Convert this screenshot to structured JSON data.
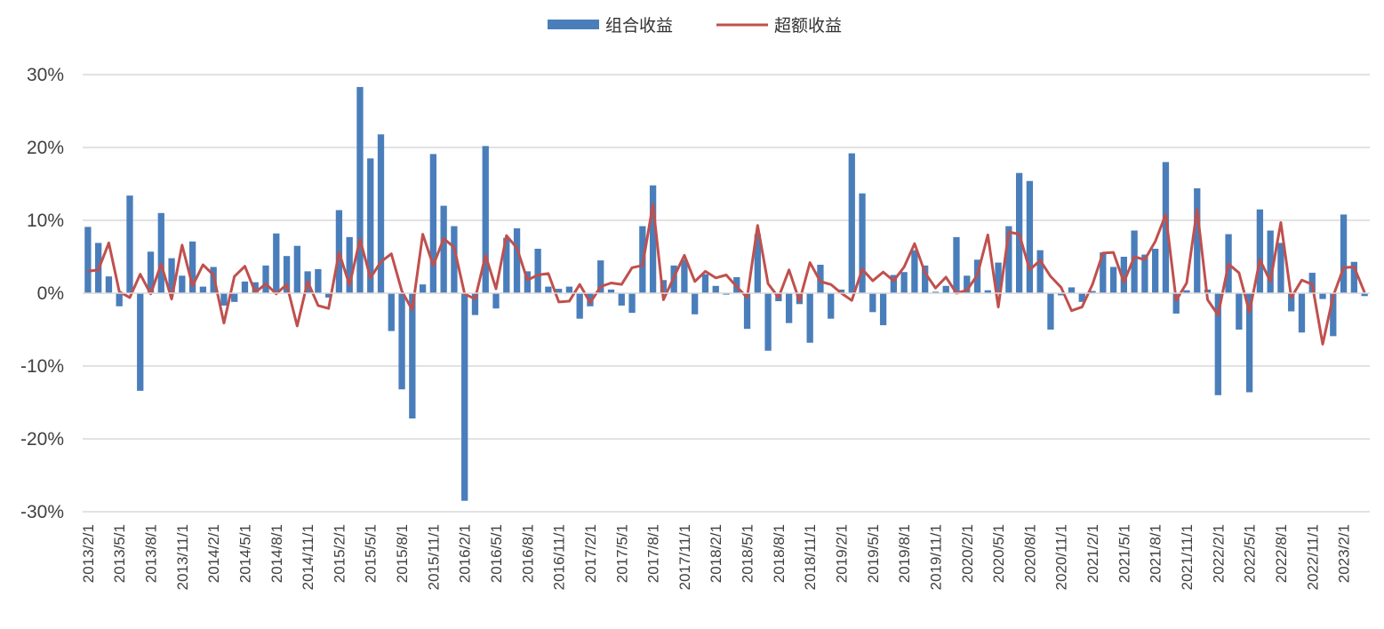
{
  "chart_data": {
    "type": "bar",
    "series": [
      {
        "name": "组合收益",
        "type": "bar",
        "color": "#4A7EBB",
        "values": [
          9.1,
          6.9,
          2.3,
          -1.8,
          13.4,
          -13.4,
          5.7,
          11.0,
          4.8,
          2.4,
          7.1,
          0.9,
          3.6,
          -1.7,
          -1.2,
          1.6,
          1.5,
          3.8,
          8.2,
          5.1,
          6.5,
          3.0,
          3.3,
          -0.6,
          11.4,
          7.7,
          28.3,
          18.5,
          21.8,
          -5.2,
          -13.2,
          -17.2,
          1.2,
          19.1,
          12.0,
          9.2,
          -28.5,
          -3.0,
          20.2,
          -2.1,
          7.6,
          8.9,
          3.0,
          6.1,
          0.9,
          0.6,
          0.9,
          -3.5,
          -1.8,
          4.5,
          0.5,
          -1.7,
          -2.7,
          9.2,
          14.8,
          1.8,
          3.8,
          4.6,
          -2.9,
          2.6,
          1.0,
          -0.2,
          2.2,
          -4.9,
          8.1,
          -7.9,
          -1.1,
          -4.1,
          -1.5,
          -6.8,
          3.9,
          -3.5,
          0.5,
          19.2,
          13.7,
          -2.6,
          -4.4,
          2.5,
          2.9,
          5.9,
          3.8,
          0.2,
          1.0,
          7.7,
          2.4,
          4.6,
          0.4,
          4.2,
          9.2,
          16.5,
          15.4,
          5.9,
          -5.0,
          -0.3,
          0.8,
          -1.2,
          0.3,
          5.6,
          3.6,
          5.0,
          8.6,
          5.3,
          6.1,
          18.0,
          -2.8,
          0.4,
          14.4,
          0.5,
          -14.0,
          8.1,
          -5.0,
          -13.6,
          11.5,
          8.6,
          6.9,
          -2.5,
          -5.4,
          2.8,
          -0.8,
          -5.9,
          10.8,
          4.3,
          -0.4
        ]
      },
      {
        "name": "超额收益",
        "type": "line",
        "color": "#C0504D",
        "values": [
          3.0,
          3.2,
          6.9,
          0.2,
          -0.6,
          2.6,
          -0.1,
          4.0,
          -0.8,
          6.6,
          1.0,
          3.9,
          2.5,
          -4.1,
          2.3,
          3.7,
          0.1,
          1.3,
          -0.1,
          1.2,
          -4.5,
          1.6,
          -1.7,
          -2.1,
          5.6,
          1.1,
          7.4,
          2.1,
          4.3,
          5.4,
          0.3,
          -2.3,
          8.1,
          3.8,
          7.5,
          6.3,
          -0.1,
          -0.8,
          5.2,
          0.6,
          7.9,
          6.2,
          1.8,
          2.5,
          2.7,
          -1.2,
          -1.1,
          1.2,
          -1.3,
          0.9,
          1.4,
          1.2,
          3.5,
          3.8,
          12.2,
          -0.9,
          2.2,
          5.2,
          1.6,
          3.0,
          2.1,
          2.5,
          0.9,
          -0.6,
          9.3,
          1.3,
          -0.6,
          3.2,
          -1.1,
          4.2,
          1.6,
          1.2,
          0.0,
          -1.0,
          3.3,
          1.7,
          2.9,
          1.7,
          3.6,
          6.8,
          2.8,
          0.7,
          2.2,
          0.0,
          0.4,
          2.5,
          8.0,
          -1.9,
          8.4,
          8.1,
          3.2,
          4.5,
          2.3,
          0.8,
          -2.4,
          -1.9,
          1.2,
          5.5,
          5.6,
          1.5,
          5.0,
          4.6,
          7.1,
          10.8,
          -1.0,
          1.4,
          11.5,
          -0.9,
          -3.0,
          4.0,
          2.8,
          -2.6,
          4.6,
          1.6,
          9.7,
          -0.6,
          1.8,
          1.2,
          -7.0,
          -0.4,
          3.5,
          3.6,
          0.1
        ]
      }
    ],
    "x_tick_labels": [
      "2013/2/1",
      "2013/5/1",
      "2013/8/1",
      "2013/11/1",
      "2014/2/1",
      "2014/5/1",
      "2014/8/1",
      "2014/11/1",
      "2015/2/1",
      "2015/5/1",
      "2015/8/1",
      "2015/11/1",
      "2016/2/1",
      "2016/5/1",
      "2016/8/1",
      "2016/11/1",
      "2017/2/1",
      "2017/5/1",
      "2017/8/1",
      "2017/11/1",
      "2018/2/1",
      "2018/5/1",
      "2018/8/1",
      "2018/11/1",
      "2019/2/1",
      "2019/5/1",
      "2019/8/1",
      "2019/11/1",
      "2020/2/1",
      "2020/5/1",
      "2020/8/1",
      "2020/11/1",
      "2021/2/1",
      "2021/5/1",
      "2021/8/1",
      "2021/11/1",
      "2022/2/1",
      "2022/5/1",
      "2022/8/1",
      "2022/11/1",
      "2023/2/1"
    ],
    "x_tick_every": 3,
    "y_ticks": [
      "30%",
      "20%",
      "10%",
      "0%",
      "-10%",
      "-20%",
      "-30%"
    ],
    "ylim": [
      -30,
      30
    ],
    "y_unit": "%",
    "grid": true,
    "legend_position": "top-center",
    "title": "",
    "xlabel": "",
    "ylabel": ""
  }
}
